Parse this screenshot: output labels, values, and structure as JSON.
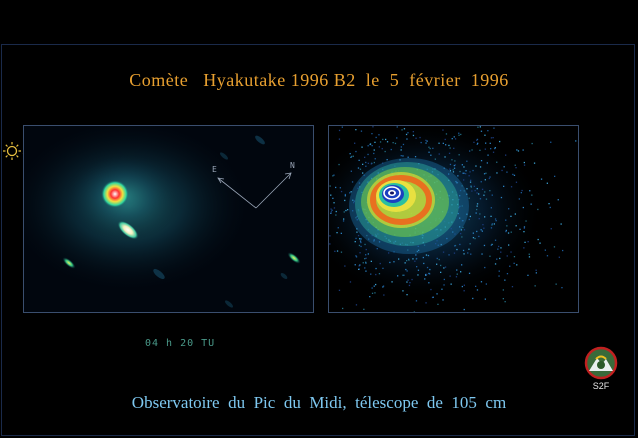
{
  "title": "Comète   Hyakutake 1996 B2  le  5  février  1996",
  "timestamp": "04 h 20 TU",
  "footer": "Observatoire  du  Pic  du  Midi,  télescope  de  105  cm",
  "logo": {
    "label": "S2F",
    "icon": "observatory-logo-icon"
  },
  "compass": {
    "east": "E",
    "north": "N"
  },
  "colors": {
    "title": "#e8a030",
    "footer": "#7ec8f0",
    "timestamp": "#4a9a8a"
  }
}
